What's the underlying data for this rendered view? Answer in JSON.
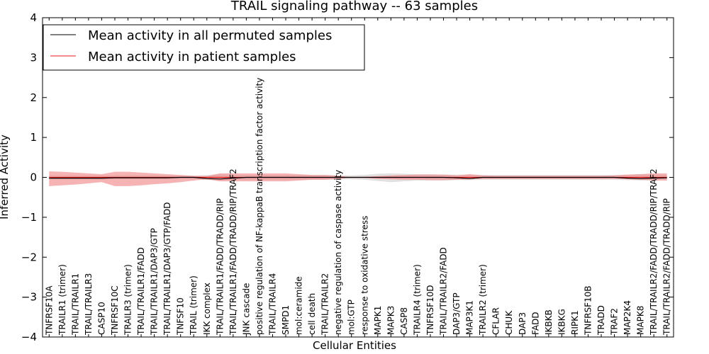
{
  "chart_data": {
    "type": "line",
    "title": "TRAIL signaling pathway -- 63 samples",
    "xlabel": "Cellular Entities",
    "ylabel": "Inferred Activity",
    "ylim": [
      -4,
      4
    ],
    "yticks": [
      -4,
      -3,
      -2,
      -1,
      0,
      1,
      2,
      3,
      4
    ],
    "ytick_labels": [
      "−4",
      "−3",
      "−2",
      "−1",
      "0",
      "1",
      "2",
      "3",
      "4"
    ],
    "legend_position": "top-left",
    "colors": {
      "permuted": "#000000",
      "patient": "#e41a1c",
      "patient_band": "#f08080",
      "permuted_band": "#c8c8c8"
    },
    "categories": [
      "TNFRSF10A",
      "TRAILR1 (trimer)",
      "TRAIL/TRAILR1",
      "TRAIL/TRAILR3",
      "CASP10",
      "TNFRSF10C",
      "TRAILR3 (trimer)",
      "TRAIL/TRAILR1/FADD",
      "TRAIL/TRAILR1/DAP3/GTP",
      "TRAIL/TRAILR1/DAP3/GTP/FADD",
      "TNFSF10",
      "TRAIL (trimer)",
      "IKK complex",
      "TRAIL/TRAILR1/FADD/TRADD/RIP",
      "TRAIL/TRAILR1/FADD/TRADD/RIP/TRAF2",
      "JNK cascade",
      "positive regulation of NF-kappaB transcription factor activity",
      "TRAIL/TRAILR4",
      "SMPD1",
      "mol:ceramide",
      "cell death",
      "TRAIL/TRAILR2",
      "negative regulation of caspase activity",
      "mol:GTP",
      "response to oxidative stress",
      "MAPK1",
      "MAPK3",
      "CASP8",
      "TRAILR4 (trimer)",
      "TNFRSF10D",
      "TRAIL/TRAILR2/FADD",
      "DAP3/GTP",
      "MAP3K1",
      "TRAILR2 (trimer)",
      "CFLAR",
      "CHUK",
      "DAP3",
      "FADD",
      "IKBKB",
      "IKBKG",
      "RIPK1",
      "TNFRSF10B",
      "TRADD",
      "TRAF2",
      "MAP2K4",
      "MAPK8",
      "TRAIL/TRAILR2/FADD/TRADD/RIP/TRAF2",
      "TRAIL/TRAILR2/FADD/TRADD/RIP"
    ],
    "series": [
      {
        "name": "Mean activity in all permuted samples",
        "color": "#000000",
        "values": [
          -0.02,
          -0.02,
          -0.02,
          -0.02,
          -0.02,
          -0.01,
          -0.01,
          -0.01,
          -0.01,
          -0.01,
          0,
          0,
          -0.03,
          -0.04,
          -0.02,
          0,
          0,
          0,
          0,
          0,
          0,
          0,
          0,
          0,
          0,
          0,
          0,
          0,
          0,
          0,
          0,
          -0.01,
          -0.03,
          0,
          0,
          0,
          0,
          0,
          0,
          0,
          0,
          0,
          0,
          0,
          -0.02,
          -0.03,
          -0.02,
          -0.01
        ],
        "band_low": [
          -0.05,
          -0.05,
          -0.05,
          -0.05,
          -0.06,
          -0.05,
          -0.05,
          -0.05,
          -0.05,
          -0.05,
          -0.04,
          -0.04,
          -0.06,
          -0.08,
          -0.06,
          -0.06,
          -0.06,
          -0.06,
          -0.06,
          -0.06,
          -0.06,
          -0.06,
          -0.05,
          -0.05,
          -0.06,
          -0.09,
          -0.12,
          -0.1,
          -0.08,
          -0.08,
          -0.08,
          -0.07,
          -0.07,
          -0.06,
          -0.06,
          -0.06,
          -0.06,
          -0.06,
          -0.06,
          -0.06,
          -0.06,
          -0.06,
          -0.06,
          -0.06,
          -0.07,
          -0.08,
          -0.07,
          -0.06
        ],
        "band_high": [
          0.05,
          0.05,
          0.05,
          0.05,
          0.05,
          0.05,
          0.05,
          0.05,
          0.05,
          0.05,
          0.04,
          0.04,
          0.06,
          0.08,
          0.06,
          0.06,
          0.06,
          0.06,
          0.06,
          0.06,
          0.06,
          0.06,
          0.05,
          0.05,
          0.06,
          0.09,
          0.1,
          0.09,
          0.08,
          0.08,
          0.07,
          0.07,
          0.07,
          0.06,
          0.06,
          0.06,
          0.06,
          0.06,
          0.06,
          0.06,
          0.06,
          0.06,
          0.06,
          0.06,
          0.07,
          0.08,
          0.07,
          0.06
        ]
      },
      {
        "name": "Mean activity in patient samples",
        "color": "#e41a1c",
        "values": [
          0,
          0,
          0,
          0,
          0,
          0,
          0,
          0,
          0,
          0,
          0,
          0,
          0,
          0,
          0,
          0,
          0,
          0,
          0,
          0,
          0,
          0,
          0,
          0,
          0,
          0,
          0,
          0,
          0,
          0,
          0,
          0,
          0,
          0,
          0,
          0,
          0,
          0,
          0,
          0,
          0,
          0,
          0,
          0,
          0,
          0,
          0,
          0
        ],
        "band_low": [
          -0.22,
          -0.2,
          -0.18,
          -0.15,
          -0.12,
          -0.22,
          -0.22,
          -0.2,
          -0.17,
          -0.15,
          -0.12,
          -0.08,
          -0.05,
          -0.1,
          -0.1,
          -0.1,
          -0.1,
          -0.1,
          -0.1,
          -0.08,
          -0.06,
          -0.06,
          -0.04,
          0,
          -0.01,
          -0.04,
          -0.05,
          -0.06,
          -0.06,
          -0.07,
          -0.07,
          -0.06,
          -0.05,
          -0.04,
          -0.04,
          -0.04,
          -0.04,
          -0.04,
          -0.04,
          -0.04,
          -0.04,
          -0.04,
          -0.04,
          -0.04,
          -0.05,
          -0.06,
          -0.08,
          -0.08
        ],
        "band_high": [
          0.15,
          0.14,
          0.12,
          0.1,
          0.08,
          0.14,
          0.14,
          0.12,
          0.1,
          0.08,
          0.06,
          0.04,
          0.03,
          0.1,
          0.1,
          0.1,
          0.1,
          0.1,
          0.1,
          0.08,
          0.06,
          0.06,
          0.04,
          0,
          0.01,
          0.03,
          0.05,
          0.06,
          0.07,
          0.07,
          0.07,
          0.05,
          0.08,
          0.05,
          0.04,
          0.04,
          0.04,
          0.04,
          0.04,
          0.04,
          0.04,
          0.04,
          0.04,
          0.05,
          0.07,
          0.08,
          0.1,
          0.1
        ]
      }
    ]
  }
}
